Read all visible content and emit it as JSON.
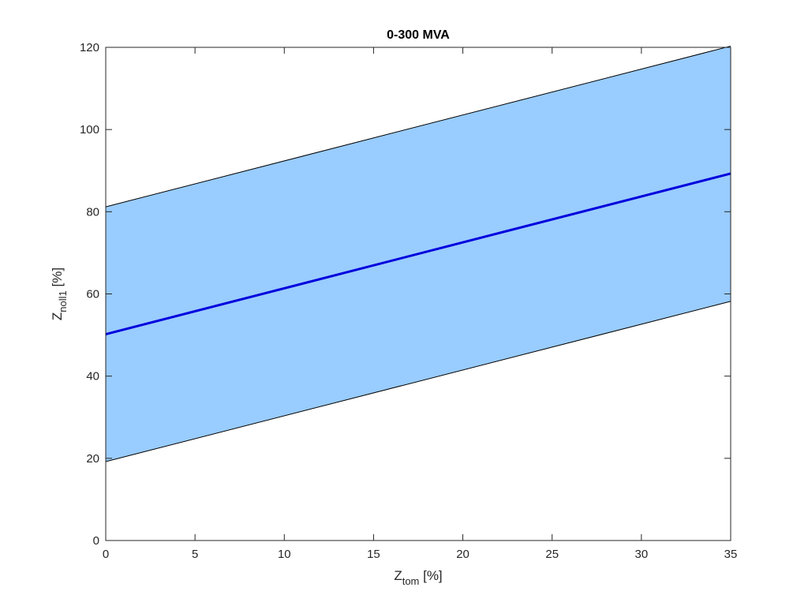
{
  "chart_data": {
    "type": "area",
    "title": "0-300 MVA",
    "xlabel": {
      "main": "Z",
      "sub": "tom",
      "unit": " [%]"
    },
    "ylabel": {
      "main": "Z",
      "sub": "noll1",
      "unit": " [%]"
    },
    "xlim": [
      0,
      35
    ],
    "ylim": [
      0,
      120
    ],
    "xticks": [
      0,
      5,
      10,
      15,
      20,
      25,
      30,
      35
    ],
    "yticks": [
      0,
      20,
      40,
      60,
      80,
      100,
      120
    ],
    "grid": false,
    "legend": "none",
    "band": {
      "x": [
        0,
        35
      ],
      "upper": [
        81.2,
        120.3
      ],
      "lower": [
        19.2,
        58.2
      ],
      "fill_color": "#99ccff",
      "edge_color": "#000000"
    },
    "series": [
      {
        "x": [
          0,
          35
        ],
        "values": [
          50.2,
          89.3
        ],
        "color": "#0000dd"
      }
    ]
  }
}
